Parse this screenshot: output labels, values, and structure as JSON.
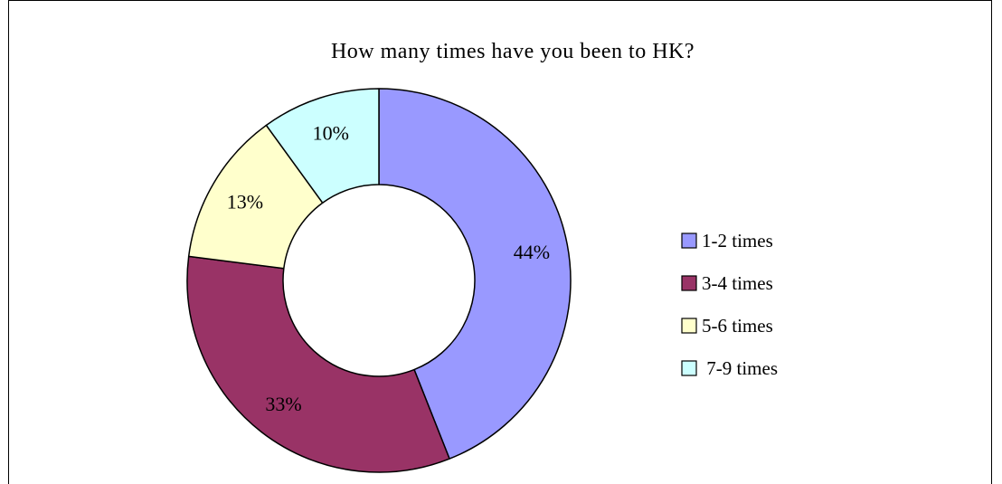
{
  "chart_data": {
    "type": "pie",
    "subtype": "doughnut",
    "title": "How many times have you been to HK?",
    "categories": [
      "1-2 times",
      "3-4 times",
      "5-6 times",
      " 7-9 times"
    ],
    "values": [
      44,
      33,
      13,
      10
    ],
    "labels": [
      "44%",
      "33%",
      "13%",
      "10%"
    ],
    "colors": [
      "#9999FF",
      "#993366",
      "#FFFFCC",
      "#CCFFFF"
    ],
    "legend": {
      "position": "right"
    }
  }
}
